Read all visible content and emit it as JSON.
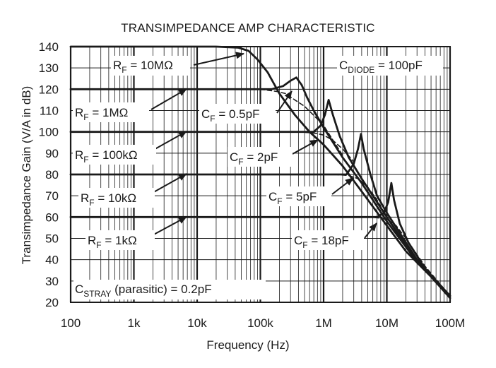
{
  "chart_data": {
    "type": "line",
    "title": "TRANSIMPEDANCE AMP CHARACTERISTIC",
    "xlabel": "Frequency (Hz)",
    "ylabel": "Transimpedance Gain (V/A in dB)",
    "x_scale": "log",
    "xlim": [
      100,
      100000000
    ],
    "ylim": [
      20,
      140
    ],
    "x_ticks": [
      {
        "value": 100,
        "label": "100"
      },
      {
        "value": 1000,
        "label": "1k"
      },
      {
        "value": 10000,
        "label": "10k"
      },
      {
        "value": 100000,
        "label": "100k"
      },
      {
        "value": 1000000,
        "label": "1M"
      },
      {
        "value": 10000000,
        "label": "10M"
      },
      {
        "value": 100000000,
        "label": "100M"
      }
    ],
    "y_ticks": [
      140,
      130,
      120,
      110,
      100,
      90,
      80,
      70,
      60,
      50,
      40,
      30,
      20
    ],
    "grid": true,
    "series": [
      {
        "style": "solid",
        "values": [
          [
            100,
            140
          ],
          [
            20000,
            140
          ],
          [
            45000,
            139.5
          ],
          [
            65000,
            138
          ],
          [
            90000,
            134
          ],
          [
            130000,
            128
          ],
          [
            200000,
            118
          ],
          [
            350000,
            108
          ],
          [
            600000,
            100
          ],
          [
            1000000,
            94
          ],
          [
            2000000,
            84
          ],
          [
            4000000,
            72
          ],
          [
            10000000,
            56
          ],
          [
            20000000,
            44
          ],
          [
            50000000,
            32
          ],
          [
            100000000,
            22
          ]
        ]
      },
      {
        "style": "solid",
        "values": [
          [
            100,
            120
          ],
          [
            150000,
            120
          ],
          [
            230000,
            121.5
          ],
          [
            300000,
            124
          ],
          [
            370000,
            125.5
          ],
          [
            450000,
            122
          ],
          [
            550000,
            116
          ],
          [
            700000,
            110
          ],
          [
            1000000,
            102
          ],
          [
            2000000,
            88
          ],
          [
            4000000,
            76
          ],
          [
            10000000,
            58
          ],
          [
            30000000,
            39
          ],
          [
            100000000,
            23
          ]
        ]
      },
      {
        "style": "dashed",
        "values": [
          [
            100000,
            120
          ],
          [
            180000,
            119
          ],
          [
            250000,
            118
          ],
          [
            350000,
            115
          ],
          [
            500000,
            112
          ],
          [
            800000,
            106
          ],
          [
            1000000,
            103
          ],
          [
            2000000,
            89
          ]
        ]
      },
      {
        "style": "solid",
        "values": [
          [
            100,
            100
          ],
          [
            700000,
            100
          ],
          [
            900000,
            103
          ],
          [
            1050000,
            108
          ],
          [
            1200000,
            115
          ],
          [
            1400000,
            108
          ],
          [
            1800000,
            98
          ],
          [
            2500000,
            88
          ],
          [
            4000000,
            78
          ],
          [
            10000000,
            60
          ],
          [
            30000000,
            39
          ],
          [
            100000000,
            23
          ]
        ]
      },
      {
        "style": "dashed",
        "values": [
          [
            400000,
            100
          ],
          [
            700000,
            99.5
          ],
          [
            1000000,
            98.5
          ],
          [
            1400000,
            96
          ],
          [
            2000000,
            92
          ],
          [
            3000000,
            86
          ]
        ]
      },
      {
        "style": "solid",
        "values": [
          [
            100,
            80
          ],
          [
            2300000,
            80
          ],
          [
            3000000,
            85
          ],
          [
            3500000,
            92
          ],
          [
            3900000,
            99
          ],
          [
            4300000,
            92
          ],
          [
            5500000,
            80
          ],
          [
            7000000,
            70
          ],
          [
            10000000,
            62
          ],
          [
            30000000,
            40
          ],
          [
            100000000,
            23
          ]
        ]
      },
      {
        "style": "dashed",
        "values": [
          [
            1500000,
            80
          ],
          [
            2500000,
            79.5
          ],
          [
            3500000,
            78
          ],
          [
            5000000,
            74
          ],
          [
            7000000,
            68
          ],
          [
            10000000,
            60
          ]
        ]
      },
      {
        "style": "solid",
        "values": [
          [
            100,
            60
          ],
          [
            7000000,
            60
          ],
          [
            9000000,
            62
          ],
          [
            10500000,
            67
          ],
          [
            11800000,
            76
          ],
          [
            13000000,
            68
          ],
          [
            16000000,
            57
          ],
          [
            22000000,
            48
          ],
          [
            40000000,
            36
          ],
          [
            100000000,
            22
          ]
        ]
      },
      {
        "style": "dashed",
        "values": [
          [
            5000000,
            60
          ],
          [
            8000000,
            59.5
          ],
          [
            10000000,
            59
          ],
          [
            14000000,
            56
          ],
          [
            20000000,
            50
          ],
          [
            40000000,
            37
          ],
          [
            100000000,
            23
          ]
        ]
      }
    ],
    "annotations": [
      {
        "label": "R",
        "sub": "F",
        "text": " = 10MΩ"
      },
      {
        "label": "R",
        "sub": "F",
        "text": " = 1MΩ"
      },
      {
        "label": "R",
        "sub": "F",
        "text": " = 100kΩ"
      },
      {
        "label": "R",
        "sub": "F",
        "text": " = 10kΩ"
      },
      {
        "label": "R",
        "sub": "F",
        "text": " = 1kΩ"
      },
      {
        "label": "C",
        "sub": "F",
        "text": " = 0.5pF"
      },
      {
        "label": "C",
        "sub": "F",
        "text": " = 2pF"
      },
      {
        "label": "C",
        "sub": "F",
        "text": " = 5pF"
      },
      {
        "label": "C",
        "sub": "F",
        "text": " = 18pF"
      },
      {
        "label": "C",
        "sub": "DIODE",
        "text": " = 100pF"
      },
      {
        "label": "C",
        "sub": "STRAY",
        "text": " (parasitic) = 0.2pF"
      }
    ]
  }
}
